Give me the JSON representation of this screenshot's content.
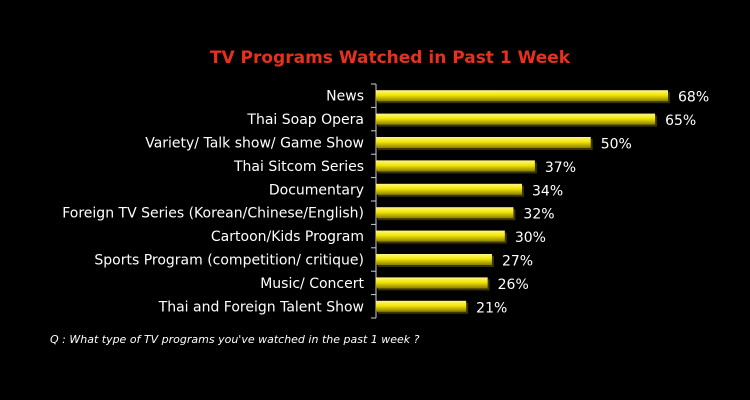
{
  "chart_data": {
    "type": "bar",
    "orientation": "horizontal",
    "title": "TV Programs Watched in Past 1 Week",
    "categories": [
      "News",
      "Thai Soap Opera",
      "Variety/ Talk show/ Game Show",
      "Thai Sitcom Series",
      "Documentary",
      "Foreign TV Series (Korean/Chinese/English)",
      "Cartoon/Kids Program",
      "Sports Program (competition/ critique)",
      "Music/ Concert",
      "Thai and Foreign Talent Show"
    ],
    "values": [
      68,
      65,
      50,
      37,
      34,
      32,
      30,
      27,
      26,
      21
    ],
    "value_labels": [
      "68%",
      "65%",
      "50%",
      "37%",
      "34%",
      "32%",
      "30%",
      "27%",
      "26%",
      "21%"
    ],
    "xlim": [
      0,
      68
    ],
    "grid": false,
    "legend": "none",
    "footnote": "Q : What type of TV programs you've watched in the past 1 week ?",
    "colors": {
      "background": "#000000",
      "bar": "#f2e600",
      "bar_highlight": "#fff68a",
      "bar_shadow": "#8a7f00",
      "title": "#e8311c",
      "text": "#ffffff"
    }
  }
}
